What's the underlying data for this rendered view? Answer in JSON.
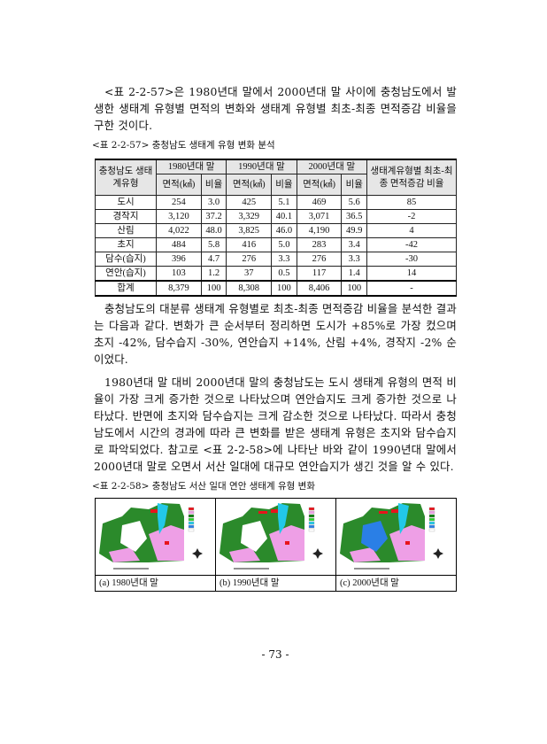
{
  "paragraphs": [
    "<표 2-2-57>은 1980년대 말에서 2000년대 말 사이에 충청남도에서 발생한 생태계 유형별 면적의 변화와 생태계 유형별 최초-최종 면적증감 비율을 구한 것이다.",
    "충청남도의 대분류 생태계 유형별로 최초-최종 면적증감 비율을 분석한 결과는 다음과 같다. 변화가 큰 순서부터 정리하면 도시가 +85%로 가장 컸으며 초지 -42%, 담수습지 -30%, 연안습지 +14%, 산림 +4%, 경작지 -2% 순이었다.",
    "1980년대 말 대비 2000년대 말의 충청남도는 도시 생태계 유형의 면적 비율이 가장 크게 증가한 것으로 나타났으며 연안습지도 크게 증가한 것으로 나타났다. 반면에 초지와 담수습지는 크게 감소한 것으로 나타났다. 따라서 충청남도에서 시간의 경과에 따라 큰 변화를 받은 생태계 유형은 초지와 담수습지로 파악되었다. 참고로 <표 2-2-58>에 나타난 바와 같이 1990년대 말에서 2000년대 말로 오면서 서산 일대에 대규모 연안습지가 생긴 것을 알 수 있다."
  ],
  "table1": {
    "caption": "<표 2-2-57> 충청남도 생태계 유형 변화 분석",
    "header_type": "충청남도 생태계유형",
    "periods": [
      "1980년대 말",
      "1990년대 말",
      "2000년대 말"
    ],
    "sub_area": "면적(㎢)",
    "sub_ratio": "비율",
    "header_change": "생태계유형별 최초-최종 면적증감 비율",
    "rows": [
      [
        "도시",
        "254",
        "3.0",
        "425",
        "5.1",
        "469",
        "5.6",
        "85"
      ],
      [
        "경작지",
        "3,120",
        "37.2",
        "3,329",
        "40.1",
        "3,071",
        "36.5",
        "-2"
      ],
      [
        "산림",
        "4,022",
        "48.0",
        "3,825",
        "46.0",
        "4,190",
        "49.9",
        "4"
      ],
      [
        "초지",
        "484",
        "5.8",
        "416",
        "5.0",
        "283",
        "3.4",
        "-42"
      ],
      [
        "담수(습지)",
        "396",
        "4.7",
        "276",
        "3.3",
        "276",
        "3.3",
        "-30"
      ],
      [
        "연안(습지)",
        "103",
        "1.2",
        "37",
        "0.5",
        "117",
        "1.4",
        "14"
      ]
    ],
    "total": [
      "합계",
      "8,379",
      "100",
      "8,308",
      "100",
      "8,406",
      "100",
      "-"
    ]
  },
  "figure": {
    "caption": "<표 2-2-58> 충청남도 서산 일대 연안 생태계 유형 변화",
    "panels": [
      {
        "label": "(a) 1980년대 말"
      },
      {
        "label": "(b) 1990년대 말"
      },
      {
        "label": "(c) 2000년대 말"
      }
    ],
    "legend_colors": [
      "#e8141c",
      "#ee9fe6",
      "#0d7a0d",
      "#2fd12f",
      "#22c8e8",
      "#2a7fe6",
      "#ffffff"
    ]
  },
  "page_number": "- 73 -"
}
